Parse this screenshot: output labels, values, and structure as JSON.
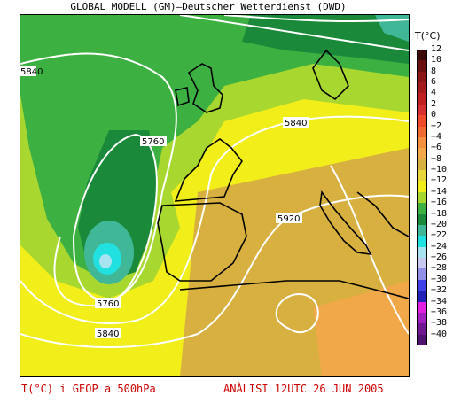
{
  "header": {
    "title": "GLOBAL MODELL (GM)—Deutscher Wetterdienst (DWD)"
  },
  "legend": {
    "title": "T(°C)",
    "entries": [
      {
        "label": "12",
        "color": "#3a0a0a"
      },
      {
        "label": "10",
        "color": "#6a1010"
      },
      {
        "label": "8",
        "color": "#8a1515"
      },
      {
        "label": "6",
        "color": "#a51a1a"
      },
      {
        "label": "4",
        "color": "#c02020"
      },
      {
        "label": "2",
        "color": "#d83030"
      },
      {
        "label": "0",
        "color": "#ee4a2a"
      },
      {
        "label": "−2",
        "color": "#f06a30"
      },
      {
        "label": "−4",
        "color": "#f29040"
      },
      {
        "label": "−6",
        "color": "#f0a848"
      },
      {
        "label": "−8",
        "color": "#d8b040"
      },
      {
        "label": "−10",
        "color": "#e8d63a"
      },
      {
        "label": "−12",
        "color": "#f2ee1a"
      },
      {
        "label": "−14",
        "color": "#a8d830"
      },
      {
        "label": "−16",
        "color": "#3cb040"
      },
      {
        "label": "−18",
        "color": "#1a8a3a"
      },
      {
        "label": "−20",
        "color": "#40b898"
      },
      {
        "label": "−22",
        "color": "#20e0e0"
      },
      {
        "label": "−24",
        "color": "#a8e4f0"
      },
      {
        "label": "−26",
        "color": "#c8c8f0"
      },
      {
        "label": "−28",
        "color": "#9090e8"
      },
      {
        "label": "−30",
        "color": "#4040e8"
      },
      {
        "label": "−32",
        "color": "#2020b8"
      },
      {
        "label": "−34",
        "color": "#e020e0"
      },
      {
        "label": "−36",
        "color": "#a020c0"
      },
      {
        "label": "−38",
        "color": "#701890"
      },
      {
        "label": "−40",
        "color": "#501070"
      }
    ]
  },
  "map": {
    "contour_labels": [
      "5840",
      "5760",
      "5840",
      "5920",
      "5760",
      "5840"
    ],
    "colors": {
      "ocean_warm": "#e8d63a",
      "land_warm": "#d8b040",
      "orange": "#f0a848",
      "green_light": "#3cb040",
      "green_mid": "#1a8a3a",
      "green_dark": "#0f6a2a",
      "teal": "#40b898",
      "cyan": "#20e0e0",
      "contour": "#ffffff",
      "coast": "#000000"
    }
  },
  "footer": {
    "left": "T(°C) i GEOP a 500hPa",
    "right": "ANÀLISI 12UTC 26 JUN 2005"
  }
}
